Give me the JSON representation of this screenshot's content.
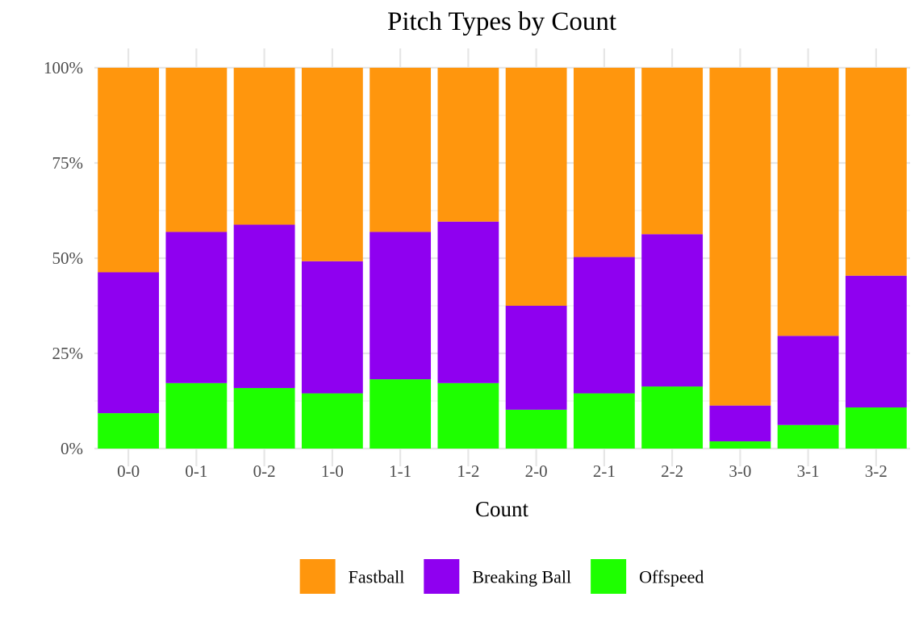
{
  "chart_data": {
    "type": "bar",
    "stacked": true,
    "title": "Pitch Types by Count",
    "xlabel": "Count",
    "ylabel": "",
    "ylim": [
      0,
      1
    ],
    "y_ticks": [
      0,
      0.25,
      0.5,
      0.75,
      1.0
    ],
    "y_tick_labels": [
      "0%",
      "25%",
      "50%",
      "75%",
      "100%"
    ],
    "grid": true,
    "legend_position": "bottom",
    "categories": [
      "0-0",
      "0-1",
      "0-2",
      "1-0",
      "1-1",
      "1-2",
      "2-0",
      "2-1",
      "2-2",
      "3-0",
      "3-1",
      "3-2"
    ],
    "series": [
      {
        "name": "Offspeed",
        "color": "#1EFF00",
        "values": [
          0.093,
          0.172,
          0.159,
          0.145,
          0.182,
          0.172,
          0.102,
          0.145,
          0.163,
          0.019,
          0.062,
          0.108
        ]
      },
      {
        "name": "Breaking Ball",
        "color": "#8F00F0",
        "values": [
          0.37,
          0.397,
          0.429,
          0.347,
          0.387,
          0.424,
          0.273,
          0.358,
          0.4,
          0.094,
          0.234,
          0.346
        ]
      },
      {
        "name": "Fastball",
        "color": "#FF960D",
        "values": [
          0.537,
          0.431,
          0.412,
          0.508,
          0.431,
          0.404,
          0.625,
          0.497,
          0.437,
          0.887,
          0.704,
          0.546
        ]
      }
    ],
    "legend_order": [
      "Fastball",
      "Breaking Ball",
      "Offspeed"
    ]
  }
}
